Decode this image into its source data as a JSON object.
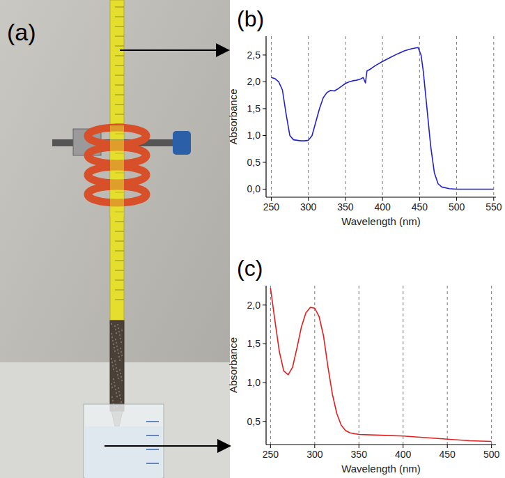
{
  "photo": {
    "label": "(a)"
  },
  "chart_data": [
    {
      "type": "line",
      "title": "(b)",
      "x_label": "Wavelength (nm)",
      "y_label": "Absorbance",
      "x": [
        250,
        255,
        260,
        265,
        270,
        275,
        280,
        285,
        290,
        295,
        300,
        305,
        310,
        315,
        320,
        325,
        330,
        335,
        340,
        345,
        350,
        355,
        360,
        365,
        370,
        374,
        377,
        379,
        385,
        390,
        400,
        410,
        420,
        430,
        440,
        448,
        452,
        455,
        460,
        465,
        470,
        475,
        480,
        490,
        500,
        550
      ],
      "values": [
        2.08,
        2.06,
        2.0,
        1.85,
        1.4,
        1.0,
        0.92,
        0.91,
        0.9,
        0.9,
        0.91,
        1.0,
        1.25,
        1.5,
        1.7,
        1.8,
        1.84,
        1.83,
        1.87,
        1.92,
        1.97,
        2.0,
        2.02,
        2.03,
        2.05,
        2.08,
        1.98,
        2.2,
        2.25,
        2.3,
        2.38,
        2.45,
        2.52,
        2.58,
        2.62,
        2.64,
        2.5,
        2.2,
        1.5,
        0.8,
        0.3,
        0.1,
        0.04,
        0.01,
        0.0,
        0.0
      ],
      "color": "#2222cc",
      "xlim": [
        243,
        553
      ],
      "xticks": [
        250,
        300,
        350,
        400,
        450,
        500,
        550
      ],
      "ylim": [
        -0.15,
        2.85
      ],
      "yticks": [
        {
          "value": 0,
          "label": "0,0"
        },
        {
          "value": 0.5,
          "label": "0,5"
        },
        {
          "value": 1,
          "label": "1,0"
        },
        {
          "value": 1.5,
          "label": "1,5"
        },
        {
          "value": 2,
          "label": "2,0"
        },
        {
          "value": 2.5,
          "label": "2,5"
        }
      ],
      "grid": "x"
    },
    {
      "type": "line",
      "title": "(c)",
      "x_label": "Wavelength (nm)",
      "y_label": "Absorbance",
      "x": [
        250,
        255,
        260,
        265,
        270,
        275,
        280,
        285,
        290,
        295,
        300,
        305,
        310,
        315,
        320,
        325,
        330,
        335,
        340,
        350,
        375,
        400,
        425,
        450,
        475,
        500
      ],
      "values": [
        2.22,
        1.8,
        1.4,
        1.15,
        1.1,
        1.2,
        1.45,
        1.72,
        1.9,
        1.97,
        1.96,
        1.85,
        1.6,
        1.2,
        0.85,
        0.6,
        0.45,
        0.38,
        0.35,
        0.33,
        0.32,
        0.31,
        0.29,
        0.27,
        0.25,
        0.24
      ],
      "color": "#e02020",
      "xlim": [
        245,
        505
      ],
      "xticks": [
        250,
        300,
        350,
        400,
        450,
        500
      ],
      "ylim": [
        0.2,
        2.25
      ],
      "yticks": [
        {
          "value": 0.5,
          "label": "0,5"
        },
        {
          "value": 1,
          "label": "1,0"
        },
        {
          "value": 1.5,
          "label": "1,5"
        },
        {
          "value": 2,
          "label": "2,0"
        }
      ],
      "grid": "x"
    }
  ]
}
